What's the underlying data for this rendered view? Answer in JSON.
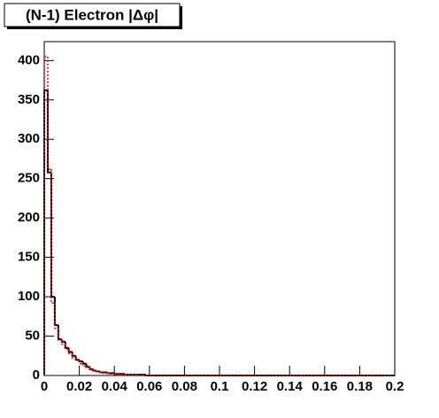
{
  "chart_data": {
    "type": "histogram",
    "title": "(N-1) Electron |Δφ|",
    "bins": [
      0,
      0.002,
      0.004,
      0.006,
      0.008,
      0.01,
      0.012,
      0.014,
      0.016,
      0.018,
      0.02,
      0.022,
      0.024,
      0.026,
      0.028,
      0.03,
      0.032,
      0.034,
      0.036,
      0.038,
      0.04,
      0.042,
      0.044,
      0.046,
      0.048,
      0.05,
      0.052,
      0.054,
      0.056,
      0.058,
      0.06,
      0.062,
      0.064,
      0.066,
      0.068,
      0.07,
      0.072,
      0.074,
      0.076,
      0.078,
      0.08,
      0.082,
      0.084,
      0.086,
      0.088,
      0.09,
      0.092,
      0.094,
      0.096,
      0.098,
      0.1,
      0.102,
      0.104,
      0.106,
      0.108,
      0.11,
      0.112,
      0.114,
      0.116,
      0.118,
      0.12,
      0.122,
      0.124,
      0.126,
      0.128,
      0.13,
      0.132,
      0.134,
      0.136,
      0.138,
      0.14,
      0.142,
      0.144,
      0.146,
      0.148,
      0.15,
      0.152,
      0.154,
      0.156,
      0.158,
      0.16,
      0.162,
      0.164,
      0.166,
      0.168,
      0.17,
      0.172,
      0.174,
      0.176,
      0.178,
      0.18,
      0.182,
      0.184,
      0.186,
      0.188,
      0.19,
      0.192,
      0.194,
      0.196,
      0.198,
      0.2
    ],
    "series": [
      {
        "color": "#000000",
        "line_style": "solid",
        "values": [
          362,
          258,
          100,
          64,
          46,
          43,
          35,
          30,
          25,
          20,
          18,
          15,
          11,
          8,
          6,
          5,
          4,
          4,
          3,
          3,
          2,
          2,
          2,
          1,
          1,
          1,
          1,
          1,
          1,
          0,
          0,
          0,
          0,
          0,
          0,
          0,
          0,
          0,
          0,
          0,
          0,
          0,
          0,
          0,
          0,
          0,
          0,
          0,
          0,
          0,
          0,
          0,
          0,
          0,
          0,
          0,
          0,
          0,
          0,
          0,
          0,
          0,
          0,
          0,
          0,
          0,
          0,
          0,
          0,
          0,
          0,
          0,
          0,
          0,
          0,
          0,
          0,
          0,
          0,
          0,
          0,
          0,
          0,
          0,
          0,
          0,
          0,
          0,
          0,
          0,
          0,
          0,
          0,
          0,
          0,
          0,
          0,
          0,
          0,
          0
        ]
      },
      {
        "color": "#ff0000",
        "line_style": "dotted",
        "values": [
          405,
          262,
          92,
          60,
          45,
          40,
          33,
          28,
          22,
          19,
          15,
          12,
          10,
          7,
          6,
          5,
          4,
          3,
          3,
          2,
          2,
          2,
          1,
          1,
          1,
          1,
          1,
          0,
          0,
          0,
          0,
          0,
          0,
          0,
          0,
          0,
          0,
          0,
          0,
          0,
          0,
          0,
          0,
          0,
          0,
          0,
          0,
          0,
          0,
          0,
          0,
          0,
          0,
          0,
          0,
          0,
          0,
          0,
          0,
          0,
          0,
          0,
          0,
          0,
          0,
          0,
          0,
          0,
          0,
          0,
          0,
          0,
          0,
          0,
          0,
          0,
          0,
          0,
          0,
          0,
          0,
          0,
          0,
          0,
          0,
          0,
          0,
          0,
          0,
          0,
          0,
          0,
          0,
          0,
          0,
          0,
          0,
          0,
          0,
          0
        ]
      }
    ],
    "xlim": [
      0,
      0.2
    ],
    "xticks": [
      0,
      0.02,
      0.04,
      0.06,
      0.08,
      0.1,
      0.12,
      0.14,
      0.16,
      0.18,
      0.2
    ],
    "ylim": [
      0,
      424
    ],
    "yticks": [
      0,
      50,
      100,
      150,
      200,
      250,
      300,
      350,
      400
    ]
  }
}
